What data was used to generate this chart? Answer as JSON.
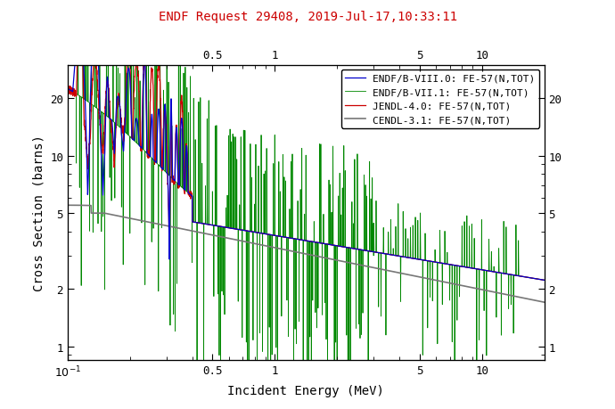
{
  "title": "ENDF Request 29408, 2019-Jul-17,10:33:11",
  "xlabel": "Incident Energy (MeV)",
  "ylabel": "Cross Section (barns)",
  "xmin": 0.1,
  "xmax": 20.0,
  "ymin": 0.85,
  "ymax": 30.0,
  "legend_entries": [
    "ENDF/B-VIII.0: FE-57(N,TOT)",
    "ENDF/B-VII.1: FE-57(N,TOT)",
    "JENDL-4.0: FE-57(N,TOT)",
    "CENDL-3.1: FE-57(N,TOT)"
  ],
  "colors": {
    "endf8": "#0000cc",
    "endf7": "#008800",
    "jendl": "#cc0000",
    "cendl": "#777777"
  },
  "title_color": "#cc0000",
  "title_fontsize": 10,
  "axis_label_fontsize": 10,
  "tick_fontsize": 9,
  "legend_fontsize": 8
}
